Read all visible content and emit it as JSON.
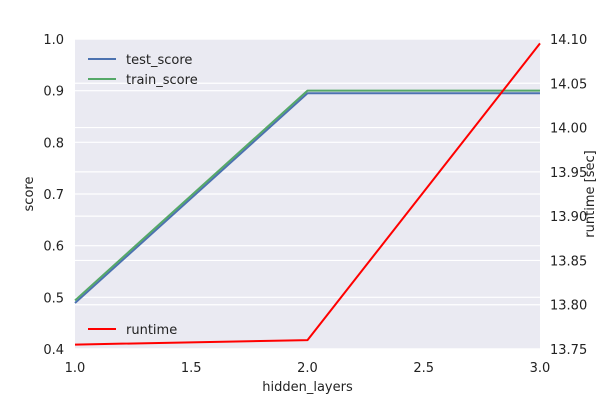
{
  "chart_data": {
    "type": "line",
    "title": "",
    "xlabel": "hidden_layers",
    "ylabel": "score",
    "y2label": "runtime [sec]",
    "x": [
      1.0,
      2.0,
      3.0
    ],
    "xlim": [
      1.0,
      3.0
    ],
    "ylim": [
      0.4,
      1.0
    ],
    "y2lim": [
      13.75,
      14.1
    ],
    "x_ticks": [
      "1.0",
      "1.5",
      "2.0",
      "2.5",
      "3.0"
    ],
    "y_ticks": [
      "0.4",
      "0.5",
      "0.6",
      "0.7",
      "0.8",
      "0.9",
      "1.0"
    ],
    "y2_ticks": [
      "13.75",
      "13.80",
      "13.85",
      "13.90",
      "13.95",
      "14.00",
      "14.05",
      "14.10"
    ],
    "grid": true,
    "series": [
      {
        "name": "test_score",
        "axis": "left",
        "color": "#4c72b0",
        "values": [
          0.489,
          0.895,
          0.895
        ]
      },
      {
        "name": "train_score",
        "axis": "left",
        "color": "#55a868",
        "values": [
          0.494,
          0.9,
          0.9
        ]
      },
      {
        "name": "runtime",
        "axis": "right",
        "color": "#ff0000",
        "values": [
          13.755,
          13.76,
          14.095
        ]
      }
    ],
    "legend": {
      "top_left": [
        "test_score",
        "train_score"
      ],
      "bottom_left": [
        "runtime"
      ]
    }
  }
}
